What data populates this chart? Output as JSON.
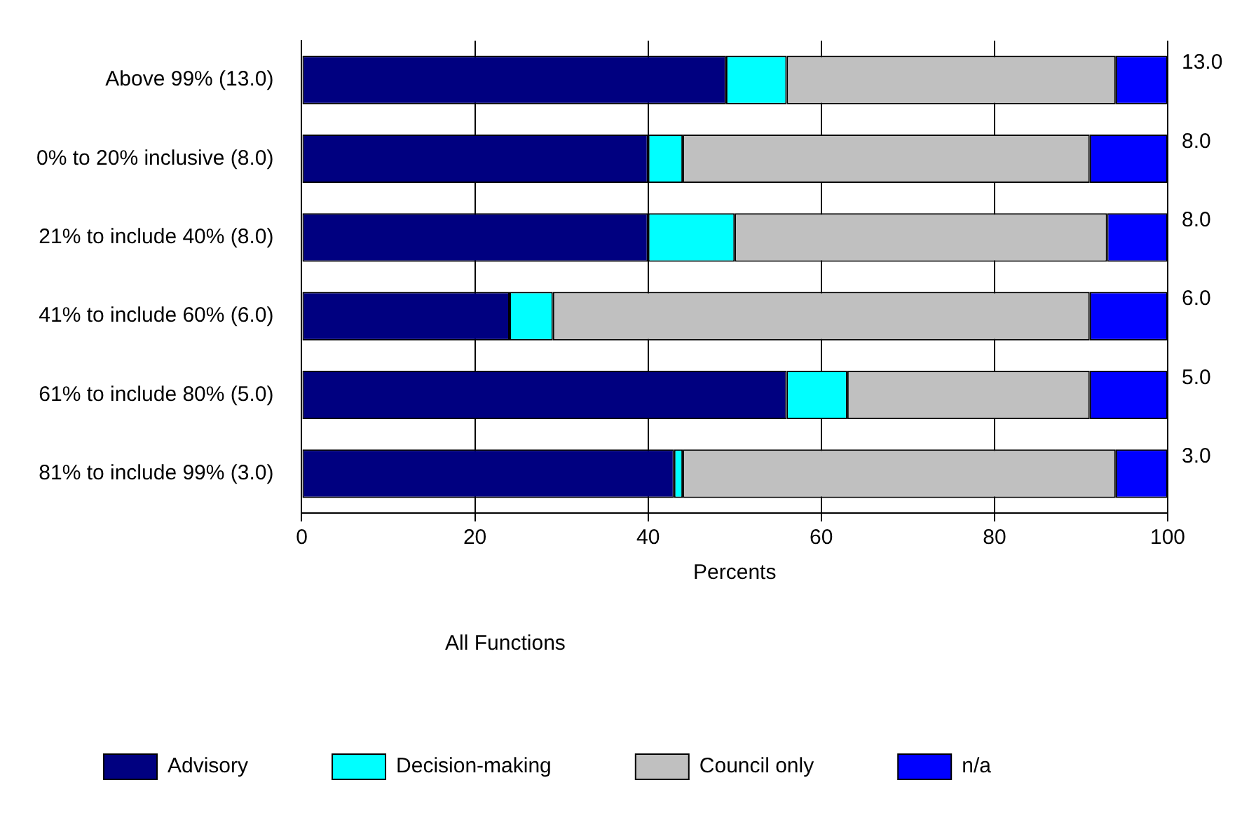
{
  "chart_data": {
    "type": "bar",
    "orientation": "horizontal",
    "stacked": true,
    "categories": [
      "Above 99% (13.0)",
      "0% to 20% inclusive (8.0)",
      "21% to include 40% (8.0)",
      "41% to include 60% (6.0)",
      "61% to include 80% (5.0)",
      "81% to include 99% (3.0)"
    ],
    "series": [
      {
        "name": "Advisory",
        "color": "#000080",
        "values": [
          49,
          40,
          40,
          24,
          56,
          43
        ]
      },
      {
        "name": "Decision-making",
        "color": "#00ffff",
        "values": [
          7,
          4,
          10,
          5,
          7,
          1
        ]
      },
      {
        "name": "Council only",
        "color": "#c0c0c0",
        "values": [
          38,
          47,
          43,
          62,
          28,
          50
        ]
      },
      {
        "name": "n/a",
        "color": "#0000ff",
        "values": [
          6,
          9,
          7,
          9,
          9,
          6
        ]
      }
    ],
    "xlim": [
      0,
      100
    ],
    "xticks": [
      0,
      20,
      40,
      60,
      80,
      100
    ],
    "grid": "x",
    "xlabel": "Percents",
    "legend_title": "All Functions",
    "legend": "bottom",
    "annotations": [
      "13.0",
      "8.0",
      "8.0",
      "6.0",
      "5.0",
      "3.0"
    ]
  }
}
